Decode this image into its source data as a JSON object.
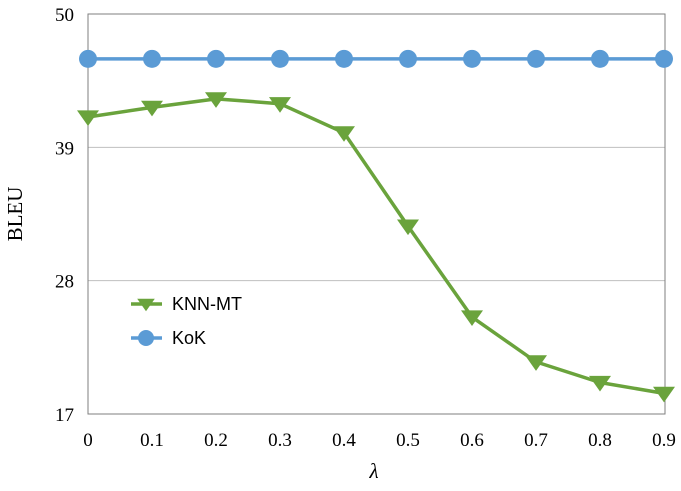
{
  "chart_data": {
    "type": "line",
    "x": [
      0,
      0.1,
      0.2,
      0.3,
      0.4,
      0.5,
      0.6,
      0.7,
      0.8,
      0.9
    ],
    "x_tick_labels": [
      "0",
      "0.1",
      "0.2",
      "0.3",
      "0.4",
      "0.5",
      "0.6",
      "0.7",
      "0.8",
      "0.9"
    ],
    "xlabel": "λ",
    "ylabel": "BLEU",
    "ylim": [
      17,
      50
    ],
    "yticks": [
      17,
      28,
      39,
      50
    ],
    "grid": "horizontal",
    "legend_position": "lower-left",
    "series": [
      {
        "name": "KNN-MT",
        "values": [
          41.5,
          42.3,
          43.0,
          42.6,
          40.2,
          32.5,
          25.0,
          21.3,
          19.6,
          18.7
        ],
        "color": "#6aa33c",
        "marker": "triangle-down"
      },
      {
        "name": "KoK",
        "values": [
          46.3,
          46.3,
          46.3,
          46.3,
          46.3,
          46.3,
          46.3,
          46.3,
          46.3,
          46.3
        ],
        "color": "#5b9bd5",
        "marker": "circle"
      }
    ]
  }
}
